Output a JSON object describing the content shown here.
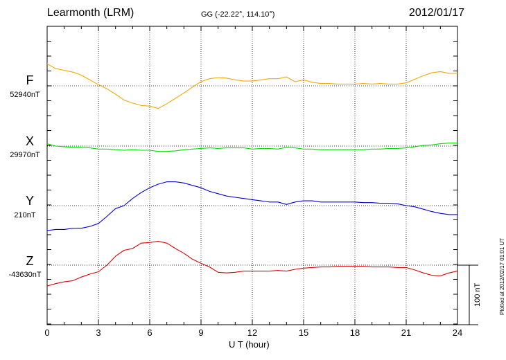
{
  "header": {
    "station": "Learmonth (LRM)",
    "coords": "GG (-22.22°, 114.10°)",
    "date": "2012/01/17"
  },
  "footer": {
    "plotted": "Plotted at 2012/02/17 01:01 UT"
  },
  "scale_bar": {
    "label": "100 nT",
    "value_nT": 100
  },
  "colors": {
    "F": "#f5a800",
    "X": "#00dd00",
    "Y": "#0000dd",
    "Z": "#dd0000"
  },
  "chart_data": {
    "type": "line",
    "xlabel": "U T (hour)",
    "xlim": [
      0,
      24
    ],
    "x_ticks": [
      "0",
      "3",
      "6",
      "9",
      "12",
      "15",
      "18",
      "21",
      "24"
    ],
    "grid": "dotted",
    "units": "nT",
    "series": [
      {
        "name": "F",
        "baseline_label": "52940nT",
        "x": [
          0,
          0.5,
          1,
          1.5,
          2,
          2.5,
          3,
          3.5,
          4,
          4.5,
          5,
          5.5,
          6,
          6.5,
          7,
          7.5,
          8,
          8.5,
          9,
          9.5,
          10,
          10.5,
          11,
          11.5,
          12,
          12.5,
          13,
          13.5,
          14,
          14.5,
          15,
          15.5,
          16,
          16.5,
          17,
          17.5,
          18,
          18.5,
          19,
          19.5,
          20,
          20.5,
          21,
          21.5,
          22,
          22.5,
          23,
          23.5,
          24
        ],
        "values": [
          37,
          29,
          26,
          23,
          18,
          10,
          2,
          -5,
          -14,
          -24,
          -29,
          -33,
          -34,
          -38,
          -30,
          -21,
          -12,
          -2,
          7,
          12,
          14,
          13,
          10,
          8,
          8,
          10,
          12,
          12,
          15,
          7,
          10,
          6,
          4,
          4,
          3,
          3,
          3,
          4,
          3,
          4,
          3,
          3,
          5,
          11,
          17,
          22,
          24,
          21,
          21
        ]
      },
      {
        "name": "X",
        "baseline_label": "29970nT",
        "x": [
          0,
          0.5,
          1,
          1.5,
          2,
          2.5,
          3,
          3.5,
          4,
          4.5,
          5,
          5.5,
          6,
          6.5,
          7,
          7.5,
          8,
          8.5,
          9,
          9.5,
          10,
          10.5,
          11,
          11.5,
          12,
          12.5,
          13,
          13.5,
          14,
          14.5,
          15,
          15.5,
          16,
          16.5,
          17,
          17.5,
          18,
          18.5,
          19,
          19.5,
          20,
          20.5,
          21,
          21.5,
          22,
          22.5,
          23,
          23.5,
          24
        ],
        "values": [
          4,
          0,
          -1,
          -2,
          -2,
          -3,
          -5,
          -5,
          -6,
          -7,
          -6,
          -7,
          -7,
          -9,
          -9,
          -8,
          -6,
          -5,
          -4,
          -3,
          -4,
          -3,
          -3,
          -3,
          -5,
          -4,
          -4,
          -5,
          -2,
          -3,
          -5,
          -5,
          -6,
          -6,
          -6,
          -6,
          -6,
          -6,
          -5,
          -5,
          -4,
          -4,
          -3,
          -1,
          1,
          2,
          4,
          5,
          5
        ]
      },
      {
        "name": "Y",
        "baseline_label": "210nT",
        "x": [
          0,
          0.5,
          1,
          1.5,
          2,
          2.5,
          3,
          3.5,
          4,
          4.5,
          5,
          5.5,
          6,
          6.5,
          7,
          7.5,
          8,
          8.5,
          9,
          9.5,
          10,
          10.5,
          11,
          11.5,
          12,
          12.5,
          13,
          13.5,
          14,
          14.5,
          15,
          15.5,
          16,
          16.5,
          17,
          17.5,
          18,
          18.5,
          19,
          19.5,
          20,
          20.5,
          21,
          21.5,
          22,
          22.5,
          23,
          23.5,
          24
        ],
        "values": [
          -42,
          -40,
          -40,
          -38,
          -38,
          -35,
          -30,
          -18,
          -5,
          0,
          12,
          22,
          30,
          36,
          40,
          40,
          38,
          34,
          30,
          24,
          20,
          16,
          14,
          12,
          10,
          8,
          6,
          6,
          2,
          6,
          8,
          8,
          6,
          6,
          6,
          6,
          6,
          5,
          5,
          4,
          4,
          3,
          0,
          -2,
          -6,
          -10,
          -13,
          -15,
          -15
        ]
      },
      {
        "name": "Z",
        "baseline_label": "-43630nT",
        "x": [
          0,
          0.5,
          1,
          1.5,
          2,
          2.5,
          3,
          3.5,
          4,
          4.5,
          5,
          5.5,
          6,
          6.5,
          7,
          7.5,
          8,
          8.5,
          9,
          9.5,
          10,
          10.5,
          11,
          11.5,
          12,
          12.5,
          13,
          13.5,
          14,
          14.5,
          15,
          15.5,
          16,
          16.5,
          17,
          17.5,
          18,
          18.5,
          19,
          19.5,
          20,
          20.5,
          21,
          21.5,
          22,
          22.5,
          23,
          23.5,
          24
        ],
        "values": [
          -35,
          -31,
          -28,
          -26,
          -20,
          -15,
          -11,
          0,
          15,
          25,
          28,
          37,
          38,
          40,
          37,
          28,
          20,
          10,
          3,
          -3,
          -12,
          -13,
          -12,
          -10,
          -10,
          -10,
          -10,
          -9,
          -10,
          -7,
          -5,
          -4,
          -3,
          -3,
          -2,
          -2,
          -2,
          -2,
          -3,
          -3,
          -3,
          -4,
          -4,
          -8,
          -13,
          -17,
          -18,
          -13,
          -10
        ]
      }
    ]
  }
}
